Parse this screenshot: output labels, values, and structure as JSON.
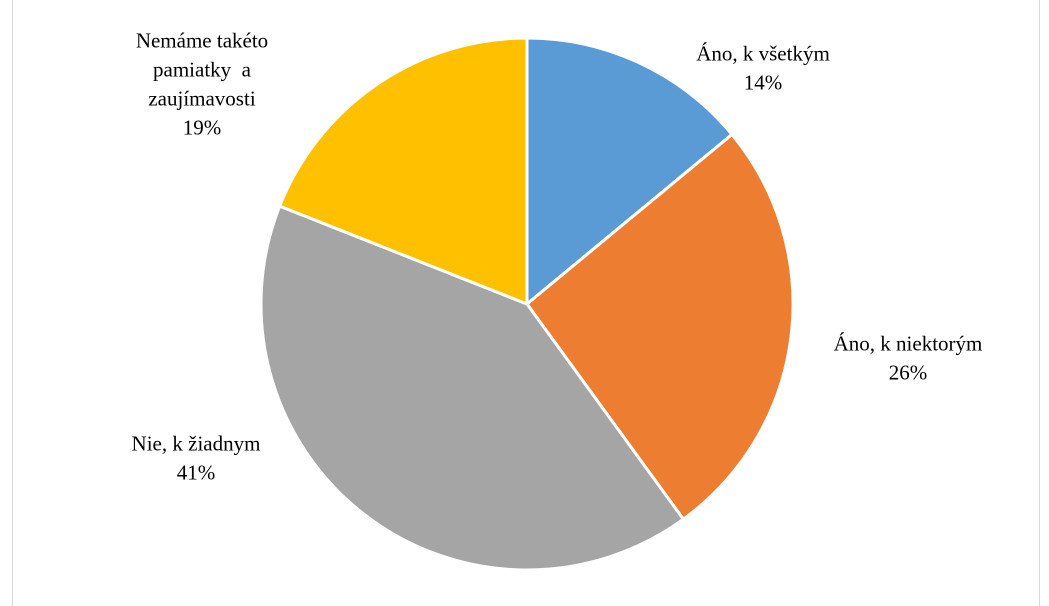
{
  "chart_data": {
    "type": "pie",
    "start_angle_deg": 0,
    "direction": "clockwise",
    "slices": [
      {
        "category": "Áno, k všetkým",
        "value": 14,
        "value_label": "14%",
        "label_lines": [
          "Áno, k všetkým"
        ],
        "color": "#5b9bd5"
      },
      {
        "category": "Áno, k niektorým",
        "value": 26,
        "value_label": "26%",
        "label_lines": [
          "Áno, k niektorým"
        ],
        "color": "#ed7d31"
      },
      {
        "category": "Nie, k žiadnym",
        "value": 41,
        "value_label": "41%",
        "label_lines": [
          "Nie, k žiadnym"
        ],
        "color": "#a5a5a5"
      },
      {
        "category": "Nemáme takéto pamiatky a zaujímavosti",
        "value": 19,
        "value_label": "19%",
        "label_lines": [
          "Nemáme takéto",
          "pamiatky  a",
          "zaujímavosti"
        ],
        "color": "#ffc000"
      }
    ],
    "legend": "none",
    "data_labels": "outside"
  }
}
